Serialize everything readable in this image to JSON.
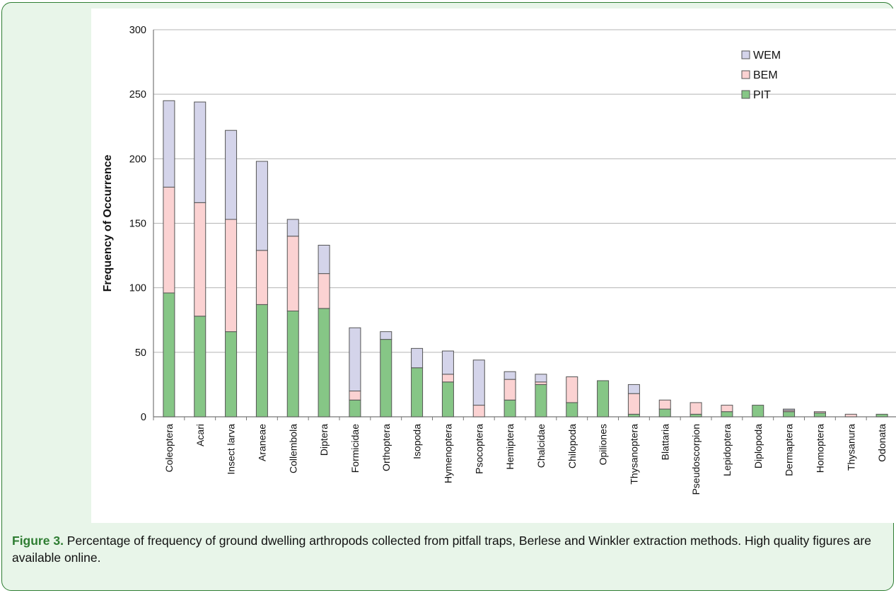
{
  "chart_data": {
    "type": "bar",
    "stacked": true,
    "categories": [
      "Coleoptera",
      "Acari",
      "Insect larva",
      "Araneae",
      "Collembola",
      "Diptera",
      "Formicidae",
      "Orthoptera",
      "Isopoda",
      "Hymenoptera",
      "Psocoptera",
      "Hemiptera",
      "Chalcidae",
      "Chilopoda",
      "Opiliones",
      "Thysanoptera",
      "Blattaria",
      "Pseudoscorpion",
      "Lepidoptera",
      "Diplopoda",
      "Dermaptera",
      "Homoptera",
      "Thysanura",
      "Odonata"
    ],
    "series": [
      {
        "name": "PIT",
        "color": "#86c686",
        "values": [
          96,
          78,
          66,
          87,
          82,
          84,
          13,
          60,
          38,
          27,
          0,
          13,
          25,
          11,
          28,
          2,
          6,
          2,
          4,
          9,
          4,
          3,
          0,
          2
        ]
      },
      {
        "name": "BEM",
        "color": "#fbd2d2",
        "values": [
          82,
          88,
          87,
          42,
          58,
          27,
          7,
          0,
          0,
          6,
          9,
          16,
          2,
          20,
          0,
          16,
          7,
          9,
          5,
          0,
          1,
          1,
          2,
          0
        ]
      },
      {
        "name": "WEM",
        "color": "#d4d4ea",
        "values": [
          67,
          78,
          69,
          69,
          13,
          22,
          49,
          6,
          15,
          18,
          35,
          6,
          6,
          0,
          0,
          7,
          0,
          0,
          0,
          0,
          1,
          0,
          0,
          0
        ]
      }
    ],
    "xlabel": "",
    "ylabel": "Frequency of Occurrence",
    "ylim": [
      0,
      300
    ],
    "yticks": [
      0,
      50,
      100,
      150,
      200,
      250,
      300
    ],
    "grid": true,
    "legend_position": "top-right"
  },
  "caption": {
    "label": "Figure 3.",
    "text": " Percentage of frequency of ground dwelling arthropods collected from pitfall traps, Berlese and Winkler extraction methods. High quality figures are available online."
  }
}
